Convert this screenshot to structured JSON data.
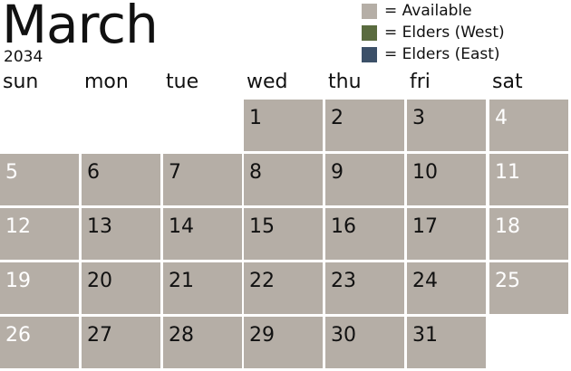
{
  "calendar": {
    "month": "March",
    "year": "2034",
    "weekdays": [
      "sun",
      "mon",
      "tue",
      "wed",
      "thu",
      "fri",
      "sat"
    ],
    "weeks": [
      [
        "",
        "",
        "",
        "1",
        "2",
        "3",
        "4"
      ],
      [
        "5",
        "6",
        "7",
        "8",
        "9",
        "10",
        "11"
      ],
      [
        "12",
        "13",
        "14",
        "15",
        "16",
        "17",
        "18"
      ],
      [
        "19",
        "20",
        "21",
        "22",
        "23",
        "24",
        "25"
      ],
      [
        "26",
        "27",
        "28",
        "29",
        "30",
        "31",
        ""
      ]
    ]
  },
  "legend": [
    {
      "label": "= Available",
      "color": "#b5aea6"
    },
    {
      "label": "= Elders (West)",
      "color": "#5a6b3f"
    },
    {
      "label": "= Elders (East)",
      "color": "#3c5068"
    }
  ]
}
